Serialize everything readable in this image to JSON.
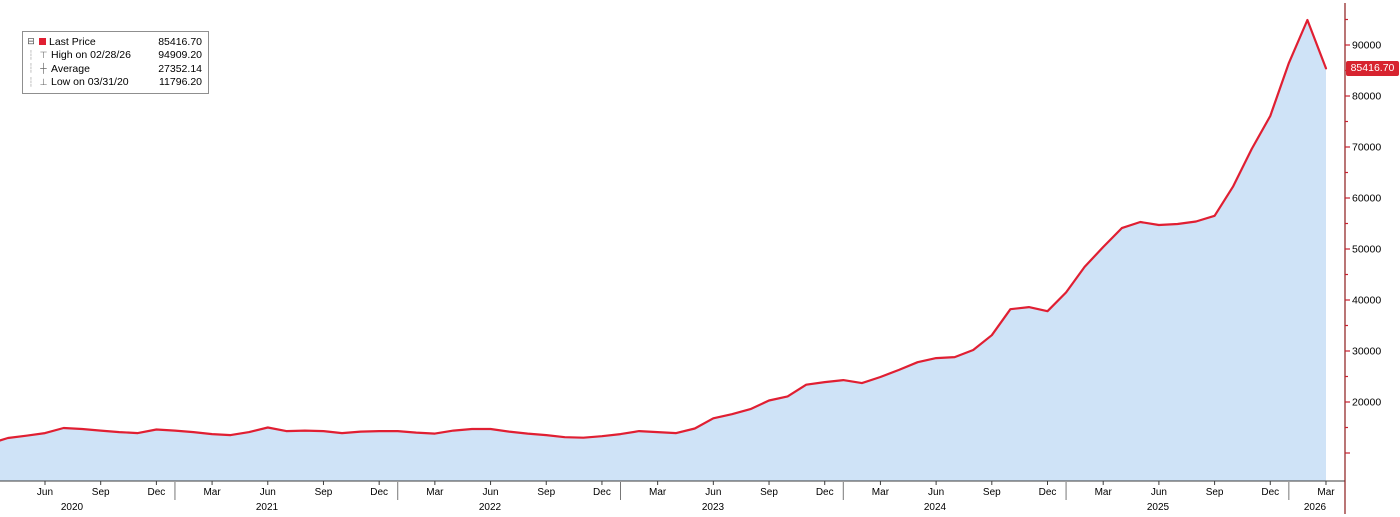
{
  "badge": {
    "text": "85416.70"
  },
  "legend": {
    "collapse_icon": "⊟",
    "rows": [
      {
        "label": "Last Price",
        "value": "85416.70",
        "icon": "last-price-swatch",
        "glyph": ""
      },
      {
        "label": "High on 02/28/26",
        "value": "94909.20",
        "icon": "high-marker",
        "glyph": "⊤"
      },
      {
        "label": "Average",
        "value": "27352.14",
        "icon": "average-marker",
        "glyph": "┼"
      },
      {
        "label": "Low on 03/31/20",
        "value": "11796.20",
        "icon": "low-marker",
        "glyph": "⊥"
      }
    ]
  },
  "colors": {
    "line": "#e01f32",
    "fill": "#cfe3f7",
    "axis_line": "#8b1a1a",
    "tick": "#c9202f",
    "badge_bg": "#d7232f",
    "badge_text": "#ffffff",
    "label_text": "#000000",
    "baseline": "#3c3c3c"
  },
  "chart_data": {
    "type": "area",
    "series_name": "Last Price",
    "title": "",
    "grid": false,
    "legend_position": "top-left",
    "ylim": [
      4500,
      97200
    ],
    "x": [
      "2020-03",
      "2020-04",
      "2020-05",
      "2020-06",
      "2020-07",
      "2020-08",
      "2020-09",
      "2020-10",
      "2020-11",
      "2020-12",
      "2021-01",
      "2021-02",
      "2021-03",
      "2021-04",
      "2021-05",
      "2021-06",
      "2021-07",
      "2021-08",
      "2021-09",
      "2021-10",
      "2021-11",
      "2021-12",
      "2022-01",
      "2022-02",
      "2022-03",
      "2022-04",
      "2022-05",
      "2022-06",
      "2022-07",
      "2022-08",
      "2022-09",
      "2022-10",
      "2022-11",
      "2022-12",
      "2023-01",
      "2023-02",
      "2023-03",
      "2023-04",
      "2023-05",
      "2023-06",
      "2023-07",
      "2023-08",
      "2023-09",
      "2023-10",
      "2023-11",
      "2023-12",
      "2024-01",
      "2024-02",
      "2024-03",
      "2024-04",
      "2024-05",
      "2024-06",
      "2024-07",
      "2024-08",
      "2024-09",
      "2024-10",
      "2024-11",
      "2024-12",
      "2025-01",
      "2025-02",
      "2025-03",
      "2025-04",
      "2025-05",
      "2025-06",
      "2025-07",
      "2025-08",
      "2025-09",
      "2025-10",
      "2025-11",
      "2025-12",
      "2026-01",
      "2026-02",
      "2026-03"
    ],
    "values": [
      11796.2,
      12950,
      13400,
      13900,
      14900,
      14700,
      14400,
      14100,
      13900,
      14600,
      14400,
      14100,
      13700,
      13500,
      14100,
      15000,
      14300,
      14400,
      14300,
      13900,
      14200,
      14300,
      14300,
      14000,
      13800,
      14400,
      14700,
      14700,
      14200,
      13800,
      13500,
      13100,
      13000,
      13300,
      13700,
      14300,
      14100,
      13900,
      14800,
      16800,
      17600,
      18600,
      20300,
      21100,
      23400,
      23900,
      24300,
      23700,
      24900,
      26300,
      27800,
      28600,
      28800,
      30200,
      33100,
      38200,
      38600,
      37800,
      41500,
      46500,
      50400,
      54100,
      55300,
      54700,
      54900,
      55400,
      56500,
      62300,
      69600,
      76100,
      86500,
      94909.2,
      85416.7
    ],
    "stats": {
      "last_price": 85416.7,
      "high": 94909.2,
      "high_date": "02/28/26",
      "average": 27352.14,
      "low": 11796.2,
      "low_date": "03/31/20"
    },
    "y_axis": {
      "side": "right",
      "tick_labels": [
        "90000",
        "80000",
        "70000",
        "60000",
        "50000",
        "40000",
        "30000",
        "20000"
      ],
      "tick_values": [
        90000,
        80000,
        70000,
        60000,
        50000,
        40000,
        30000,
        20000
      ],
      "minor_step": 5000
    },
    "x_axis": {
      "month_tick_labels": [
        "Jun",
        "Sep",
        "Dec",
        "Mar",
        "Jun",
        "Sep",
        "Dec",
        "Mar",
        "Jun",
        "Sep",
        "Dec",
        "Mar",
        "Jun",
        "Sep",
        "Dec",
        "Mar",
        "Jun",
        "Sep",
        "Dec",
        "Mar",
        "Jun",
        "Sep",
        "Dec",
        "Mar"
      ],
      "year_labels": [
        "2020",
        "2021",
        "2022",
        "2023",
        "2024",
        "2025",
        "2026"
      ]
    }
  }
}
